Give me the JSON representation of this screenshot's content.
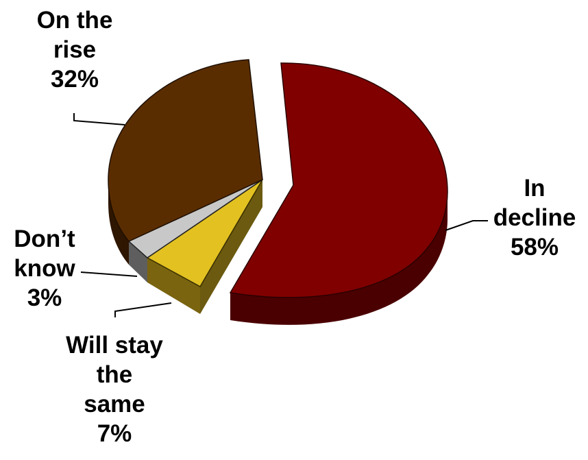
{
  "chart_data": {
    "type": "pie",
    "slices": [
      {
        "label_lines": [
          "In",
          "decline"
        ],
        "percent_text": "58%",
        "value": 58,
        "color": "#800000"
      },
      {
        "label_lines": [
          "Will stay",
          "the",
          "same"
        ],
        "percent_text": "7%",
        "value": 7,
        "color": "#E2C121"
      },
      {
        "label_lines": [
          "Don’t",
          "know"
        ],
        "percent_text": "3%",
        "value": 3,
        "color": "#C8C8C8"
      },
      {
        "label_lines": [
          "On the",
          "rise"
        ],
        "percent_text": "32%",
        "value": 32,
        "color": "#5A2D00"
      }
    ],
    "exploded": true,
    "style": "3d"
  }
}
